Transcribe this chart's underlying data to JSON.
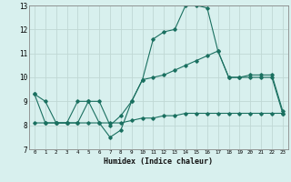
{
  "xlabel": "Humidex (Indice chaleur)",
  "bg_color": "#d8f0ee",
  "grid_color": "#c0d8d4",
  "line_color": "#1a7060",
  "line1_y": [
    9.3,
    9.0,
    8.1,
    8.1,
    8.1,
    9.0,
    9.0,
    8.0,
    8.4,
    9.0,
    9.9,
    11.6,
    11.9,
    12.0,
    13.0,
    13.0,
    12.9,
    11.1,
    10.0,
    10.0,
    10.0,
    10.0,
    10.0,
    8.5
  ],
  "line2_y": [
    9.3,
    8.1,
    8.1,
    8.1,
    9.0,
    9.0,
    8.1,
    7.5,
    7.8,
    9.0,
    9.9,
    10.0,
    10.1,
    10.3,
    10.5,
    10.7,
    10.9,
    11.1,
    10.0,
    10.0,
    10.1,
    10.1,
    10.1,
    8.6
  ],
  "line3_y": [
    8.1,
    8.1,
    8.1,
    8.1,
    8.1,
    8.1,
    8.1,
    8.1,
    8.1,
    8.2,
    8.3,
    8.3,
    8.4,
    8.4,
    8.5,
    8.5,
    8.5,
    8.5,
    8.5,
    8.5,
    8.5,
    8.5,
    8.5,
    8.5
  ],
  "ylim": [
    7,
    13
  ],
  "xlim": [
    -0.5,
    23.5
  ],
  "yticks": [
    7,
    8,
    9,
    10,
    11,
    12,
    13
  ],
  "xticks": [
    0,
    1,
    2,
    3,
    4,
    5,
    6,
    7,
    8,
    9,
    10,
    11,
    12,
    13,
    14,
    15,
    16,
    17,
    18,
    19,
    20,
    21,
    22,
    23
  ]
}
